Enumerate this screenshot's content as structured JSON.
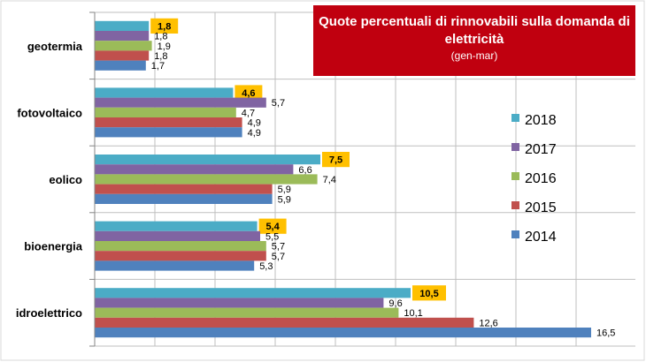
{
  "chart_data": {
    "type": "bar",
    "orientation": "horizontal",
    "title": "Quote percentuali di rinnovabili sulla domanda di elettricità",
    "subtitle": "(gen-mar)",
    "categories": [
      "geotermia",
      "fotovoltaico",
      "eolico",
      "bioenergia",
      "idroelettrico"
    ],
    "series": [
      {
        "name": "2018",
        "color": "#4bacc6",
        "values": [
          1.8,
          4.6,
          7.5,
          5.4,
          10.5
        ],
        "labels": [
          "1,8",
          "4,6",
          "7,5",
          "5,4",
          "10,5"
        ],
        "highlight": true
      },
      {
        "name": "2017",
        "color": "#8064a2",
        "values": [
          1.8,
          5.7,
          6.6,
          5.5,
          9.6
        ],
        "labels": [
          "1,8",
          "5,7",
          "6,6",
          "5,5",
          "9,6"
        ]
      },
      {
        "name": "2016",
        "color": "#9bbb59",
        "values": [
          1.9,
          4.7,
          7.4,
          5.7,
          10.1
        ],
        "labels": [
          "1,9",
          "4,7",
          "7,4",
          "5,7",
          "10,1"
        ]
      },
      {
        "name": "2015",
        "color": "#c0504d",
        "values": [
          1.8,
          4.9,
          5.9,
          5.7,
          12.6
        ],
        "labels": [
          "1,8",
          "4,9",
          "5,9",
          "5,7",
          "12,6"
        ]
      },
      {
        "name": "2014",
        "color": "#4f81bd",
        "values": [
          1.7,
          4.9,
          5.9,
          5.3,
          16.5
        ],
        "labels": [
          "1,7",
          "4,9",
          "5,9",
          "5,3",
          "16,5"
        ]
      }
    ],
    "xlim": [
      0,
      18
    ],
    "grid": true,
    "legend_position": "right",
    "highlight_color": "#ffc000",
    "title_box_color": "#c0000f"
  }
}
